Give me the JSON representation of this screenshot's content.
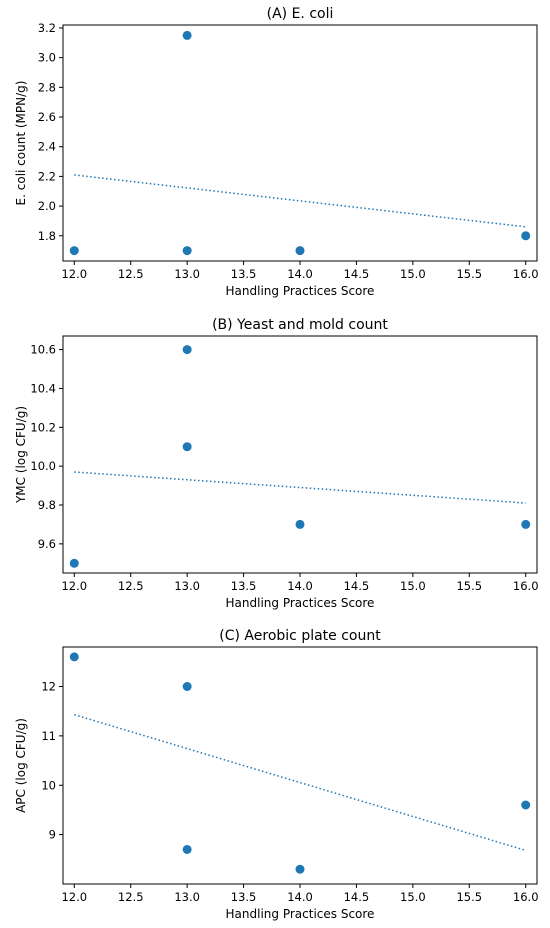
{
  "chart_data": [
    {
      "type": "scatter",
      "title": "(A) E. coli",
      "xlabel": "Handling Practices Score",
      "ylabel": "E. coli count (MPN/g)",
      "xlim": [
        11.9,
        16.1
      ],
      "ylim": [
        1.63,
        3.22
      ],
      "xticks": [
        "12.0",
        "12.5",
        "13.0",
        "13.5",
        "14.0",
        "14.5",
        "15.0",
        "15.5",
        "16.0"
      ],
      "yticks": [
        "1.8",
        "2.0",
        "2.2",
        "2.4",
        "2.6",
        "2.8",
        "3.0",
        "3.2"
      ],
      "points": [
        {
          "x": 12,
          "y": 1.7
        },
        {
          "x": 13,
          "y": 3.15
        },
        {
          "x": 13,
          "y": 1.7
        },
        {
          "x": 14,
          "y": 1.7
        },
        {
          "x": 16,
          "y": 1.8
        }
      ],
      "trendline": {
        "x": [
          12,
          16
        ],
        "y": [
          2.21,
          1.86
        ]
      },
      "color": "#1f77b4",
      "grid": false
    },
    {
      "type": "scatter",
      "title": "(B) Yeast and mold count",
      "xlabel": "Handling Practices Score",
      "ylabel": "YMC (log CFU/g)",
      "xlim": [
        11.9,
        16.1
      ],
      "ylim": [
        9.45,
        10.67
      ],
      "xticks": [
        "12.0",
        "12.5",
        "13.0",
        "13.5",
        "14.0",
        "14.5",
        "15.0",
        "15.5",
        "16.0"
      ],
      "yticks": [
        "9.6",
        "9.8",
        "10.0",
        "10.2",
        "10.4",
        "10.6"
      ],
      "points": [
        {
          "x": 12,
          "y": 9.5
        },
        {
          "x": 13,
          "y": 10.6
        },
        {
          "x": 13,
          "y": 10.1
        },
        {
          "x": 14,
          "y": 9.7
        },
        {
          "x": 16,
          "y": 9.7
        }
      ],
      "trendline": {
        "x": [
          12,
          16
        ],
        "y": [
          9.97,
          9.81
        ]
      },
      "color": "#1f77b4",
      "grid": false
    },
    {
      "type": "scatter",
      "title": "(C) Aerobic plate count",
      "xlabel": "Handling Practices Score",
      "ylabel": "APC (log CFU/g)",
      "xlim": [
        11.9,
        16.1
      ],
      "ylim": [
        8.0,
        12.8
      ],
      "xticks": [
        "12.0",
        "12.5",
        "13.0",
        "13.5",
        "14.0",
        "14.5",
        "15.0",
        "15.5",
        "16.0"
      ],
      "yticks": [
        "9",
        "10",
        "11",
        "12"
      ],
      "points": [
        {
          "x": 12,
          "y": 12.6
        },
        {
          "x": 13,
          "y": 12.0
        },
        {
          "x": 13,
          "y": 8.7
        },
        {
          "x": 14,
          "y": 8.3
        },
        {
          "x": 16,
          "y": 9.6
        }
      ],
      "trendline": {
        "x": [
          12,
          16
        ],
        "y": [
          11.43,
          8.68
        ]
      },
      "color": "#1f77b4",
      "grid": false
    }
  ]
}
